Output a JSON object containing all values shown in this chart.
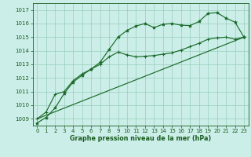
{
  "background_color": "#cceee8",
  "grid_color": "#99ccbb",
  "line_color": "#1a6b2a",
  "xlabel": "Graphe pression niveau de la mer (hPa)",
  "xlabel_color": "#1a5c20",
  "tick_color": "#1a5c20",
  "ylim": [
    1008.5,
    1017.5
  ],
  "xlim": [
    -0.5,
    23.5
  ],
  "yticks": [
    1009,
    1010,
    1011,
    1012,
    1013,
    1014,
    1015,
    1016,
    1017
  ],
  "xticks": [
    0,
    1,
    2,
    3,
    4,
    5,
    6,
    7,
    8,
    9,
    10,
    11,
    12,
    13,
    14,
    15,
    16,
    17,
    18,
    19,
    20,
    21,
    22,
    23
  ],
  "series1_x": [
    0,
    1,
    2,
    3,
    4,
    5,
    6,
    7,
    8,
    9,
    10,
    11,
    12,
    13,
    14,
    15,
    16,
    17,
    18,
    19,
    20,
    21,
    22,
    23
  ],
  "series1_y": [
    1008.7,
    1009.1,
    1009.8,
    1010.85,
    1011.7,
    1012.2,
    1012.65,
    1013.15,
    1014.1,
    1015.0,
    1015.5,
    1015.82,
    1016.0,
    1015.7,
    1015.95,
    1016.0,
    1015.88,
    1015.85,
    1016.15,
    1016.75,
    1016.8,
    1016.4,
    1016.1,
    1015.0
  ],
  "series2_x": [
    0,
    1,
    2,
    3,
    4,
    5,
    6,
    7,
    8,
    9,
    10,
    11,
    12,
    13,
    14,
    15,
    16,
    17,
    18,
    19,
    20,
    21,
    22,
    23
  ],
  "series2_y": [
    1009.0,
    1009.5,
    1010.8,
    1011.0,
    1011.8,
    1012.3,
    1012.65,
    1013.0,
    1013.55,
    1013.9,
    1013.7,
    1013.55,
    1013.6,
    1013.65,
    1013.75,
    1013.85,
    1014.05,
    1014.3,
    1014.55,
    1014.85,
    1014.95,
    1015.0,
    1014.85,
    1015.0
  ],
  "series3_x": [
    0,
    23
  ],
  "series3_y": [
    1009.0,
    1015.0
  ]
}
